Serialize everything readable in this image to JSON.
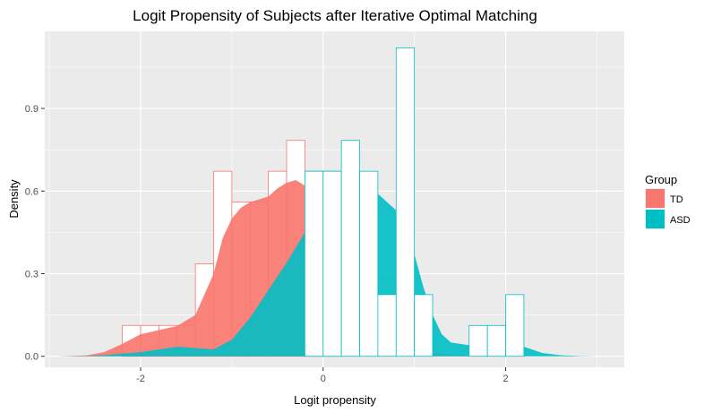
{
  "chart_data": {
    "type": "histogram-density",
    "title": "Logit Propensity of Subjects after Iterative Optimal Matching",
    "xlabel": "Logit propensity",
    "ylabel": "Density",
    "xlim": [
      -3.05,
      3.3
    ],
    "ylim": [
      -0.04,
      1.18
    ],
    "xticks": [
      -2,
      0,
      2
    ],
    "xtick_labels": [
      "-2",
      "0",
      "2"
    ],
    "yticks": [
      0.0,
      0.3,
      0.6,
      0.9
    ],
    "ytick_labels": [
      "0.0",
      "0.3",
      "0.6",
      "0.9"
    ],
    "grid": true,
    "legend": {
      "title": "Group",
      "position": "right",
      "entries": [
        {
          "label": "TD",
          "color": "#F8766D"
        },
        {
          "label": "ASD",
          "color": "#00BFC4"
        }
      ]
    },
    "bin_width": 0.2,
    "series": [
      {
        "name": "TD",
        "color": "#F8766D",
        "histogram": {
          "bin_starts": [
            -2.2,
            -2.0,
            -1.8,
            -1.6,
            -1.4,
            -1.2,
            -1.0,
            -0.8,
            -0.6,
            -0.4,
            -0.2,
            0.0,
            0.2
          ],
          "values": [
            0.112,
            0.112,
            0.112,
            0.112,
            0.336,
            0.672,
            0.56,
            0.56,
            0.672,
            0.784,
            0.672,
            0.672,
            0.0
          ]
        },
        "density": {
          "x": [
            -2.9,
            -2.6,
            -2.4,
            -2.2,
            -2.0,
            -1.8,
            -1.6,
            -1.4,
            -1.2,
            -1.1,
            -1.0,
            -0.9,
            -0.8,
            -0.6,
            -0.5,
            -0.4,
            -0.3,
            -0.2,
            -0.1,
            0.0,
            0.1,
            0.2,
            0.4,
            0.6,
            0.8,
            1.0,
            1.2,
            1.4,
            1.6,
            1.8,
            2.0,
            2.2,
            2.4,
            2.6,
            2.8,
            3.0
          ],
          "y": [
            0.0,
            0.003,
            0.015,
            0.045,
            0.08,
            0.095,
            0.11,
            0.15,
            0.3,
            0.43,
            0.5,
            0.54,
            0.56,
            0.58,
            0.61,
            0.63,
            0.64,
            0.62,
            0.55,
            0.45,
            0.35,
            0.27,
            0.16,
            0.09,
            0.05,
            0.025,
            0.012,
            0.006,
            0.003,
            0.001,
            0.0,
            0.0,
            0.0,
            0.0,
            0.0,
            0.0
          ]
        }
      },
      {
        "name": "ASD",
        "color": "#00BFC4",
        "histogram": {
          "bin_starts": [
            -0.2,
            0.0,
            0.2,
            0.4,
            0.6,
            0.8,
            1.0,
            1.2,
            1.4,
            1.6,
            1.8,
            2.0
          ],
          "values": [
            0.672,
            0.672,
            0.784,
            0.672,
            0.224,
            1.12,
            0.224,
            0.0,
            0.0,
            0.112,
            0.112,
            0.224
          ]
        },
        "density": {
          "x": [
            -2.9,
            -2.6,
            -2.4,
            -2.2,
            -2.0,
            -1.8,
            -1.6,
            -1.4,
            -1.2,
            -1.0,
            -0.8,
            -0.6,
            -0.4,
            -0.2,
            0.0,
            0.2,
            0.3,
            0.4,
            0.6,
            0.8,
            0.9,
            1.0,
            1.1,
            1.2,
            1.3,
            1.4,
            1.6,
            1.8,
            1.9,
            2.0,
            2.1,
            2.2,
            2.4,
            2.6,
            2.8,
            3.0
          ],
          "y": [
            0.0,
            0.001,
            0.004,
            0.01,
            0.015,
            0.025,
            0.035,
            0.03,
            0.025,
            0.06,
            0.14,
            0.24,
            0.34,
            0.45,
            0.56,
            0.62,
            0.635,
            0.62,
            0.59,
            0.53,
            0.47,
            0.37,
            0.25,
            0.15,
            0.08,
            0.05,
            0.04,
            0.07,
            0.085,
            0.08,
            0.06,
            0.035,
            0.012,
            0.004,
            0.001,
            0.0
          ]
        }
      }
    ]
  }
}
